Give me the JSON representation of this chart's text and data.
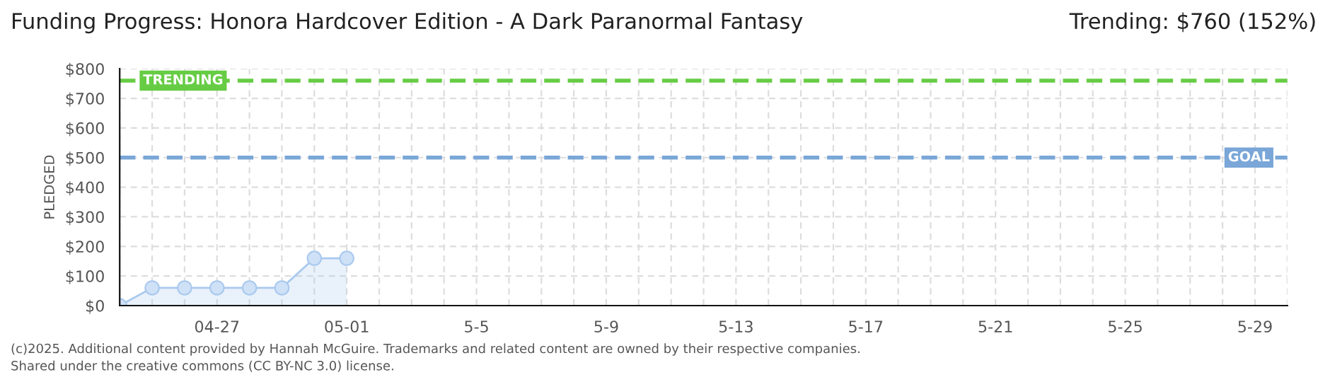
{
  "chart_data": {
    "type": "area",
    "title": "Funding Progress: Honora Hardcover Edition - A Dark Paranormal Fantasy",
    "subtitle": "Trending: $760 (152%)",
    "ylabel": "PLEDGED",
    "x": [
      "2025-04-24",
      "2025-04-25",
      "2025-04-26",
      "2025-04-27",
      "2025-04-28",
      "2025-04-29",
      "2025-04-30",
      "2025-05-01"
    ],
    "series": [
      {
        "color": "#a9c9ee",
        "values": [
          0,
          60,
          60,
          60,
          60,
          60,
          160,
          160
        ]
      }
    ],
    "marker": "circle",
    "xlim": [
      "2025-04-24",
      "2025-05-30"
    ],
    "xticks": [
      {
        "value": "2025-04-24",
        "label": null
      },
      {
        "value": "2025-04-25",
        "label": null
      },
      {
        "value": "2025-04-26",
        "label": null
      },
      {
        "value": "2025-04-27",
        "label": "04-27"
      },
      {
        "value": "2025-04-28",
        "label": null
      },
      {
        "value": "2025-04-29",
        "label": null
      },
      {
        "value": "2025-04-30",
        "label": null
      },
      {
        "value": "2025-05-01",
        "label": "05-01"
      },
      {
        "value": "2025-05-02",
        "label": null
      },
      {
        "value": "2025-05-03",
        "label": null
      },
      {
        "value": "2025-05-04",
        "label": null
      },
      {
        "value": "2025-05-05",
        "label": "5-5"
      },
      {
        "value": "2025-05-06",
        "label": null
      },
      {
        "value": "2025-05-07",
        "label": null
      },
      {
        "value": "2025-05-08",
        "label": null
      },
      {
        "value": "2025-05-09",
        "label": "5-9"
      },
      {
        "value": "2025-05-10",
        "label": null
      },
      {
        "value": "2025-05-11",
        "label": null
      },
      {
        "value": "2025-05-12",
        "label": null
      },
      {
        "value": "2025-05-13",
        "label": "5-13"
      },
      {
        "value": "2025-05-14",
        "label": null
      },
      {
        "value": "2025-05-15",
        "label": null
      },
      {
        "value": "2025-05-16",
        "label": null
      },
      {
        "value": "2025-05-17",
        "label": "5-17"
      },
      {
        "value": "2025-05-18",
        "label": null
      },
      {
        "value": "2025-05-19",
        "label": null
      },
      {
        "value": "2025-05-20",
        "label": null
      },
      {
        "value": "2025-05-21",
        "label": "5-21"
      },
      {
        "value": "2025-05-22",
        "label": null
      },
      {
        "value": "2025-05-23",
        "label": null
      },
      {
        "value": "2025-05-24",
        "label": null
      },
      {
        "value": "2025-05-25",
        "label": "5-25"
      },
      {
        "value": "2025-05-26",
        "label": null
      },
      {
        "value": "2025-05-27",
        "label": null
      },
      {
        "value": "2025-05-28",
        "label": null
      },
      {
        "value": "2025-05-29",
        "label": "5-29"
      },
      {
        "value": "2025-05-30",
        "label": null
      }
    ],
    "ylim": [
      0,
      800
    ],
    "yticks": [
      {
        "value": 0,
        "label": "$0"
      },
      {
        "value": 100,
        "label": "$100"
      },
      {
        "value": 200,
        "label": "$200"
      },
      {
        "value": 300,
        "label": "$300"
      },
      {
        "value": 400,
        "label": "$400"
      },
      {
        "value": 500,
        "label": "$500"
      },
      {
        "value": 600,
        "label": "$600"
      },
      {
        "value": 700,
        "label": "$700"
      },
      {
        "value": 800,
        "label": "$800"
      }
    ],
    "ref_lines": [
      {
        "axis": "y",
        "value": 760,
        "label": "TRENDING",
        "color": "#66cc44",
        "line_style": "dashed"
      },
      {
        "axis": "y",
        "value": 500,
        "label": "GOAL",
        "color": "#7aa6d8",
        "line_style": "dashed"
      }
    ],
    "grid": true,
    "legend": false,
    "annotations": [
      "(c)2025. Additional content provided by Hannah McGuire. Trademarks and related content are owned by their respective companies.",
      "Shared under the creative commons (CC BY-NC 3.0) license."
    ]
  }
}
